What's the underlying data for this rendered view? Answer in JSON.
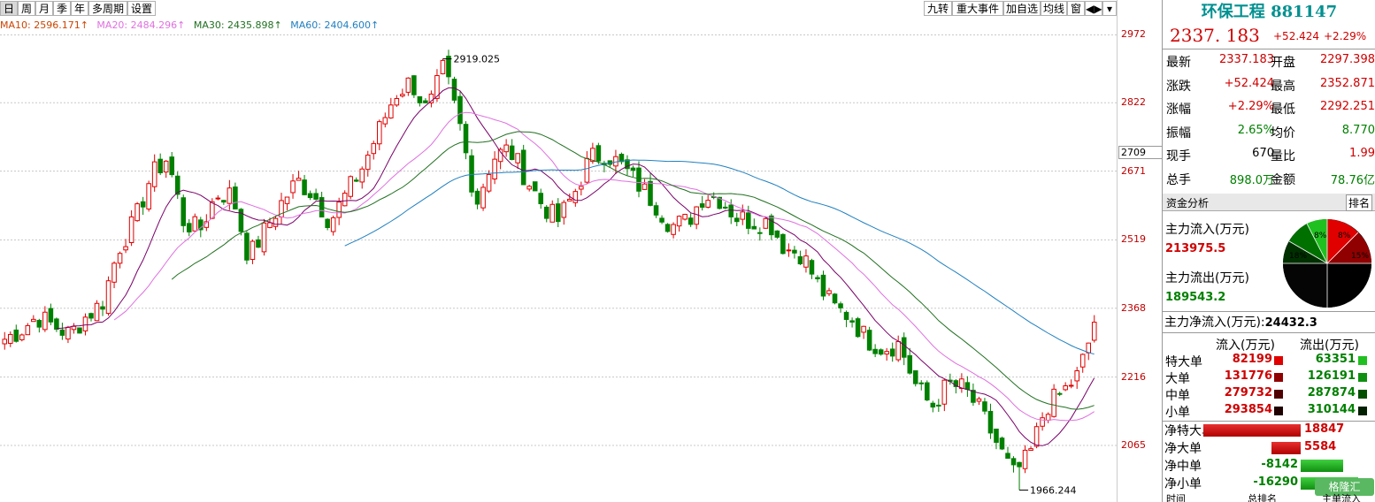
{
  "period_tabs": [
    "日",
    "周",
    "月",
    "季",
    "年",
    "多周期",
    "设置"
  ],
  "right_tabs": [
    "九转",
    "重大事件",
    "加自选",
    "均线",
    "窗"
  ],
  "moving_averages": [
    {
      "label": "MA10: 2596.171↑",
      "color": "#cc4400"
    },
    {
      "label": "MA20: 2484.296↑",
      "color": "#e070e0"
    },
    {
      "label": "MA30: 2435.898↑",
      "color": "#207020"
    },
    {
      "label": "MA60: 2404.600↑",
      "color": "#2080c0"
    }
  ],
  "y_axis": {
    "ticks": [
      "2972",
      "2822",
      "2671",
      "2519",
      "2368",
      "2216",
      "2065"
    ],
    "marker": "2709"
  },
  "annotations": {
    "high": "2919.025",
    "low": "1966.244"
  },
  "chart_data": {
    "type": "candlestick",
    "ylim": [
      1940,
      3010
    ],
    "y_ticks": [
      2972,
      2822,
      2671,
      2519,
      2368,
      2216,
      2065
    ],
    "high": 2919.025,
    "low": 1966.244,
    "ohlc_anchors": [
      [
        2320,
        2300
      ],
      [
        2330,
        2320
      ],
      [
        2340,
        2350
      ],
      [
        2360,
        2330
      ],
      [
        2330,
        2310
      ],
      [
        2320,
        2350
      ],
      [
        2340,
        2380
      ],
      [
        2440,
        2500
      ],
      [
        2500,
        2560
      ],
      [
        2560,
        2660
      ],
      [
        2660,
        2700
      ],
      [
        2680,
        2560
      ],
      [
        2560,
        2540
      ],
      [
        2540,
        2620
      ],
      [
        2610,
        2620
      ],
      [
        2560,
        2480
      ],
      [
        2500,
        2540
      ],
      [
        2560,
        2600
      ],
      [
        2600,
        2650
      ],
      [
        2650,
        2620
      ],
      [
        2600,
        2560
      ],
      [
        2560,
        2620
      ],
      [
        2620,
        2680
      ],
      [
        2700,
        2760
      ],
      [
        2760,
        2840
      ],
      [
        2840,
        2870
      ],
      [
        2870,
        2800
      ],
      [
        2830,
        2900
      ],
      [
        2900,
        2770
      ],
      [
        2760,
        2600
      ],
      [
        2720,
        2700
      ],
      [
        2700,
        2720
      ],
      [
        2700,
        2660
      ],
      [
        2640,
        2600
      ],
      [
        2590,
        2560
      ],
      [
        2560,
        2620
      ],
      [
        2630,
        2700
      ],
      [
        2700,
        2710
      ],
      [
        2700,
        2680
      ],
      [
        2680,
        2640
      ],
      [
        2640,
        2600
      ],
      [
        2600,
        2550
      ],
      [
        2540,
        2560
      ],
      [
        2570,
        2620
      ],
      [
        2620,
        2610
      ],
      [
        2600,
        2570
      ],
      [
        2580,
        2560
      ],
      [
        2560,
        2560
      ],
      [
        2540,
        2500
      ],
      [
        2500,
        2490
      ],
      [
        2480,
        2420
      ],
      [
        2420,
        2370
      ],
      [
        2370,
        2350
      ],
      [
        2350,
        2300
      ],
      [
        2300,
        2280
      ],
      [
        2280,
        2290
      ],
      [
        2270,
        2200
      ],
      [
        2200,
        2150
      ],
      [
        2150,
        2200
      ],
      [
        2220,
        2190
      ],
      [
        2180,
        2140
      ],
      [
        2120,
        2070
      ],
      [
        2060,
        2000
      ],
      [
        2000,
        2040
      ],
      [
        2060,
        2150
      ],
      [
        2200,
        2180
      ],
      [
        2180,
        2220
      ],
      [
        2240,
        2330
      ]
    ]
  },
  "panel": {
    "name": "环保工程",
    "code": "881147",
    "price": "2337. 183",
    "change": "+52.424",
    "change_pct": "+2.29%",
    "quote_rows": [
      {
        "k1": "最新",
        "v1": "2337.183",
        "c1": "red",
        "k2": "开盘",
        "v2": "2297.398",
        "c2": "red"
      },
      {
        "k1": "涨跌",
        "v1": "+52.424",
        "c1": "red",
        "k2": "最高",
        "v2": "2352.871",
        "c2": "red"
      },
      {
        "k1": "涨幅",
        "v1": "+2.29%",
        "c1": "red",
        "k2": "最低",
        "v2": "2292.251",
        "c2": "red"
      },
      {
        "k1": "振幅",
        "v1": "2.65%",
        "c1": "green",
        "k2": "均价",
        "v2": "8.770",
        "c2": "green"
      },
      {
        "k1": "现手",
        "v1": "670",
        "c1": "black",
        "k2": "量比",
        "v2": "1.99",
        "c2": "red"
      },
      {
        "k1": "总手",
        "v1": "898.0万",
        "c1": "green",
        "k2": "金额",
        "v2": "78.76亿",
        "c2": "green"
      }
    ],
    "fund_tab": "资金分析",
    "rank_button": "排名",
    "inflow_label": "主力流入(万元)",
    "inflow_value": "213975.5",
    "outflow_label": "主力流出(万元)",
    "outflow_value": "189543.2",
    "net_label": "主力净流入(万元):",
    "net_value": "24432.3",
    "pie_labels": [
      "8%",
      "8%",
      "18%",
      "15%"
    ],
    "flow_in_head": "流入(万元)",
    "flow_out_head": "流出(万元)",
    "flow_rows": [
      {
        "label": "特大单",
        "in": "82199",
        "out": "63351",
        "in_color": "#e00000",
        "out_color": "#20c020"
      },
      {
        "label": "大单",
        "in": "131776",
        "out": "126191",
        "in_color": "#900000",
        "out_color": "#109010"
      },
      {
        "label": "中单",
        "in": "279732",
        "out": "287874",
        "in_color": "#500000",
        "out_color": "#005000"
      },
      {
        "label": "小单",
        "in": "293854",
        "out": "310144",
        "in_color": "#200000",
        "out_color": "#002000"
      }
    ],
    "net_rows": [
      {
        "label": "净特大单",
        "value": "18847",
        "num": 18847
      },
      {
        "label": "净大单",
        "value": "5584",
        "num": 5584
      },
      {
        "label": "净中单",
        "value": "-8142",
        "num": -8142
      },
      {
        "label": "净小单",
        "value": "-16290",
        "num": -16290
      }
    ],
    "bottom_tabs": [
      "时间",
      "总排名",
      "主单流入"
    ],
    "watermark": "格隆汇"
  }
}
